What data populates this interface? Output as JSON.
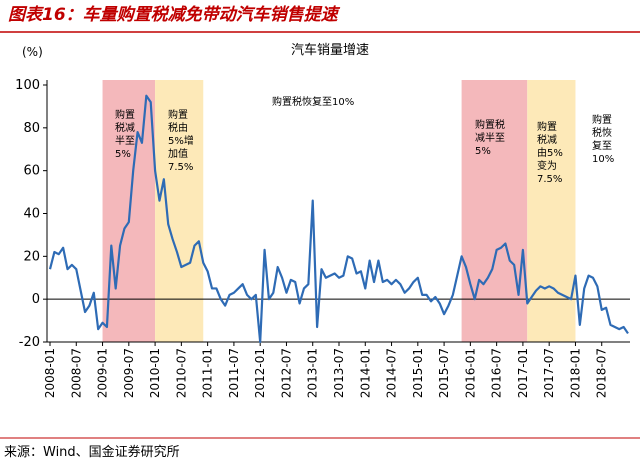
{
  "header": {
    "title": "图表16：车量购置税减免带动汽车销售提速"
  },
  "chart_data": {
    "type": "line",
    "title": "汽车销量增速",
    "ylabel": "(%)",
    "categories": [
      "2008-01",
      null,
      null,
      null,
      null,
      null,
      "2008-07",
      null,
      null,
      null,
      null,
      null,
      "2009-01",
      null,
      null,
      null,
      null,
      null,
      "2009-07",
      null,
      null,
      null,
      null,
      null,
      "2010-01",
      null,
      null,
      null,
      null,
      null,
      "2010-07",
      null,
      null,
      null,
      null,
      null,
      "2011-01",
      null,
      null,
      null,
      null,
      null,
      "2011-07",
      null,
      null,
      null,
      null,
      null,
      "2012-01",
      null,
      null,
      null,
      null,
      null,
      "2012-07",
      null,
      null,
      null,
      null,
      null,
      "2013-01",
      null,
      null,
      null,
      null,
      null,
      "2013-07",
      null,
      null,
      null,
      null,
      null,
      "2014-01",
      null,
      null,
      null,
      null,
      null,
      "2014-07",
      null,
      null,
      null,
      null,
      null,
      "2015-01",
      null,
      null,
      null,
      null,
      null,
      "2015-07",
      null,
      null,
      null,
      null,
      null,
      "2016-01",
      null,
      null,
      null,
      null,
      null,
      "2016-07",
      null,
      null,
      null,
      null,
      null,
      "2017-01",
      null,
      null,
      null,
      null,
      null,
      "2017-07",
      null,
      null,
      null,
      null,
      null,
      "2018-01",
      null,
      null,
      null,
      null,
      null,
      "2018-07",
      null,
      null,
      null,
      null,
      null,
      null
    ],
    "series": [
      {
        "name": "汽车销量增速",
        "color": "#2e6bb5",
        "values": [
          14,
          22,
          21,
          24,
          14,
          16,
          14,
          4,
          -6,
          -3,
          3,
          -14,
          -11,
          -13,
          25,
          5,
          25,
          33,
          36,
          60,
          78,
          73,
          95,
          92,
          60,
          46,
          56,
          35,
          28,
          22,
          15,
          16,
          17,
          25,
          27,
          17,
          13,
          5,
          5,
          0,
          -3,
          2,
          3,
          5,
          7,
          2,
          0,
          2,
          -20,
          23,
          0,
          3,
          15,
          10,
          3,
          9,
          8,
          -2,
          5,
          7,
          46,
          -13,
          14,
          10,
          11,
          12,
          10,
          11,
          20,
          19,
          12,
          13,
          5,
          18,
          8,
          18,
          8,
          9,
          7,
          9,
          7,
          3,
          5,
          8,
          10,
          2,
          2,
          -1,
          1,
          -2,
          -7,
          -3,
          2,
          11,
          20,
          15,
          7,
          0,
          9,
          7,
          10,
          14,
          23,
          24,
          26,
          18,
          16,
          2,
          23,
          -2,
          1,
          4,
          6,
          5,
          6,
          5,
          3,
          2,
          1,
          0,
          11,
          -12,
          5,
          11,
          10,
          6,
          -5,
          -4,
          -12,
          -13,
          -14,
          -13,
          -16
        ]
      }
    ],
    "ylim": [
      -20,
      100
    ],
    "yticks": [
      -20,
      0,
      20,
      40,
      60,
      80,
      100
    ],
    "shaded_periods": [
      {
        "from": 12,
        "to": 24,
        "color": "#f4b8bb",
        "lines": [
          "购置",
          "税减",
          "半至",
          "5%"
        ]
      },
      {
        "from": 24,
        "to": 35,
        "color": "#fde9b8",
        "lines": [
          "购置",
          "税由",
          "5%增",
          "加值",
          "7.5%"
        ]
      },
      {
        "from": 94,
        "to": 109,
        "color": "#f4b8bb",
        "lines": [
          "购置税",
          "减半至",
          "5%"
        ]
      },
      {
        "from": 109,
        "to": 120,
        "color": "#fde9b8",
        "lines": [
          "购置",
          "税减",
          "由5%",
          "变为",
          "7.5%"
        ]
      }
    ],
    "annotations": [
      {
        "lines": [
          "购置税恢复至10%"
        ]
      },
      {
        "lines": [
          "购置",
          "税恢",
          "复至",
          "10%"
        ]
      }
    ]
  },
  "footer": {
    "source": "来源：Wind、国金证券研究所"
  }
}
